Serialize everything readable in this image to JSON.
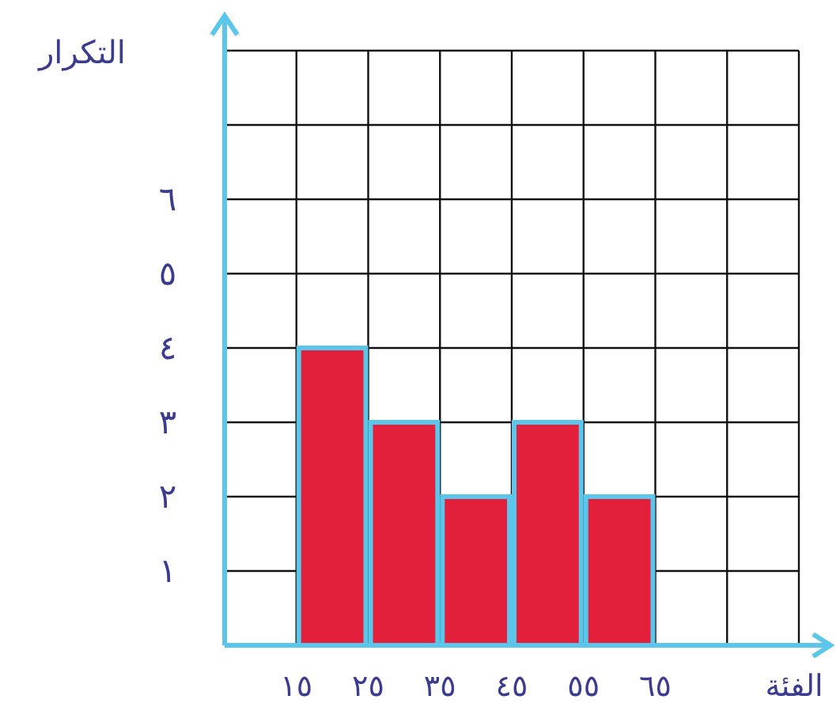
{
  "chart_data": {
    "type": "histogram",
    "xlabel": "الفئة",
    "ylabel": "التكرار",
    "bins": [
      15,
      25,
      35,
      45,
      55,
      65
    ],
    "values": [
      4,
      3,
      2,
      3,
      2
    ],
    "color": "#e3203c",
    "xlim": [
      5,
      85
    ],
    "ylim": [
      0,
      8
    ],
    "xticks": [
      {
        "value": 15,
        "label": "١٥"
      },
      {
        "value": 25,
        "label": "٢٥"
      },
      {
        "value": 35,
        "label": "٣٥"
      },
      {
        "value": 45,
        "label": "٤٥"
      },
      {
        "value": 55,
        "label": "٥٥"
      },
      {
        "value": 65,
        "label": "٦٥"
      },
      {
        "value": 75,
        "label": null
      },
      {
        "value": 85,
        "label": null
      }
    ],
    "yticks": [
      {
        "value": 1,
        "label": "١"
      },
      {
        "value": 2,
        "label": "٢"
      },
      {
        "value": 3,
        "label": "٣"
      },
      {
        "value": 4,
        "label": "٤"
      },
      {
        "value": 5,
        "label": "٥"
      },
      {
        "value": 6,
        "label": "٦"
      },
      {
        "value": 7,
        "label": null
      },
      {
        "value": 8,
        "label": null
      }
    ],
    "grid": true
  }
}
